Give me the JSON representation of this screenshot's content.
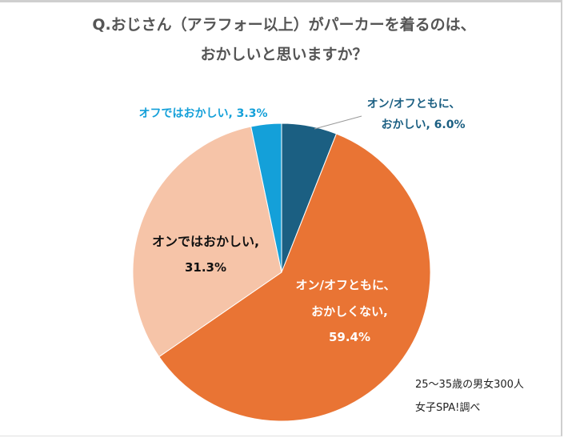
{
  "chart_data": {
    "type": "pie",
    "title_line1": "Q.おじさん（アラフォー以上）がパーカーを着るのは、",
    "title_line2": "おかしいと思いますか？",
    "slices": [
      {
        "label_lines": [
          "オン/オフともに、",
          "おかしい, 6.0%"
        ],
        "value": 6.0,
        "color": "#1b5f82"
      },
      {
        "label_lines": [
          "オン/オフともに、",
          "おかしくない,",
          "59.4%"
        ],
        "value": 59.4,
        "color": "#e97434"
      },
      {
        "label_lines": [
          "オンではおかしい,",
          "31.3%"
        ],
        "value": 31.3,
        "color": "#f6c4a8"
      },
      {
        "label_lines": [
          "オフではおかしい, 3.3%"
        ],
        "value": 3.3,
        "color": "#14a0d9"
      }
    ],
    "start_angle": "top",
    "direction": "clockwise"
  },
  "notes": [
    "25～35歳の男女300人",
    "女子SPA!調べ"
  ]
}
